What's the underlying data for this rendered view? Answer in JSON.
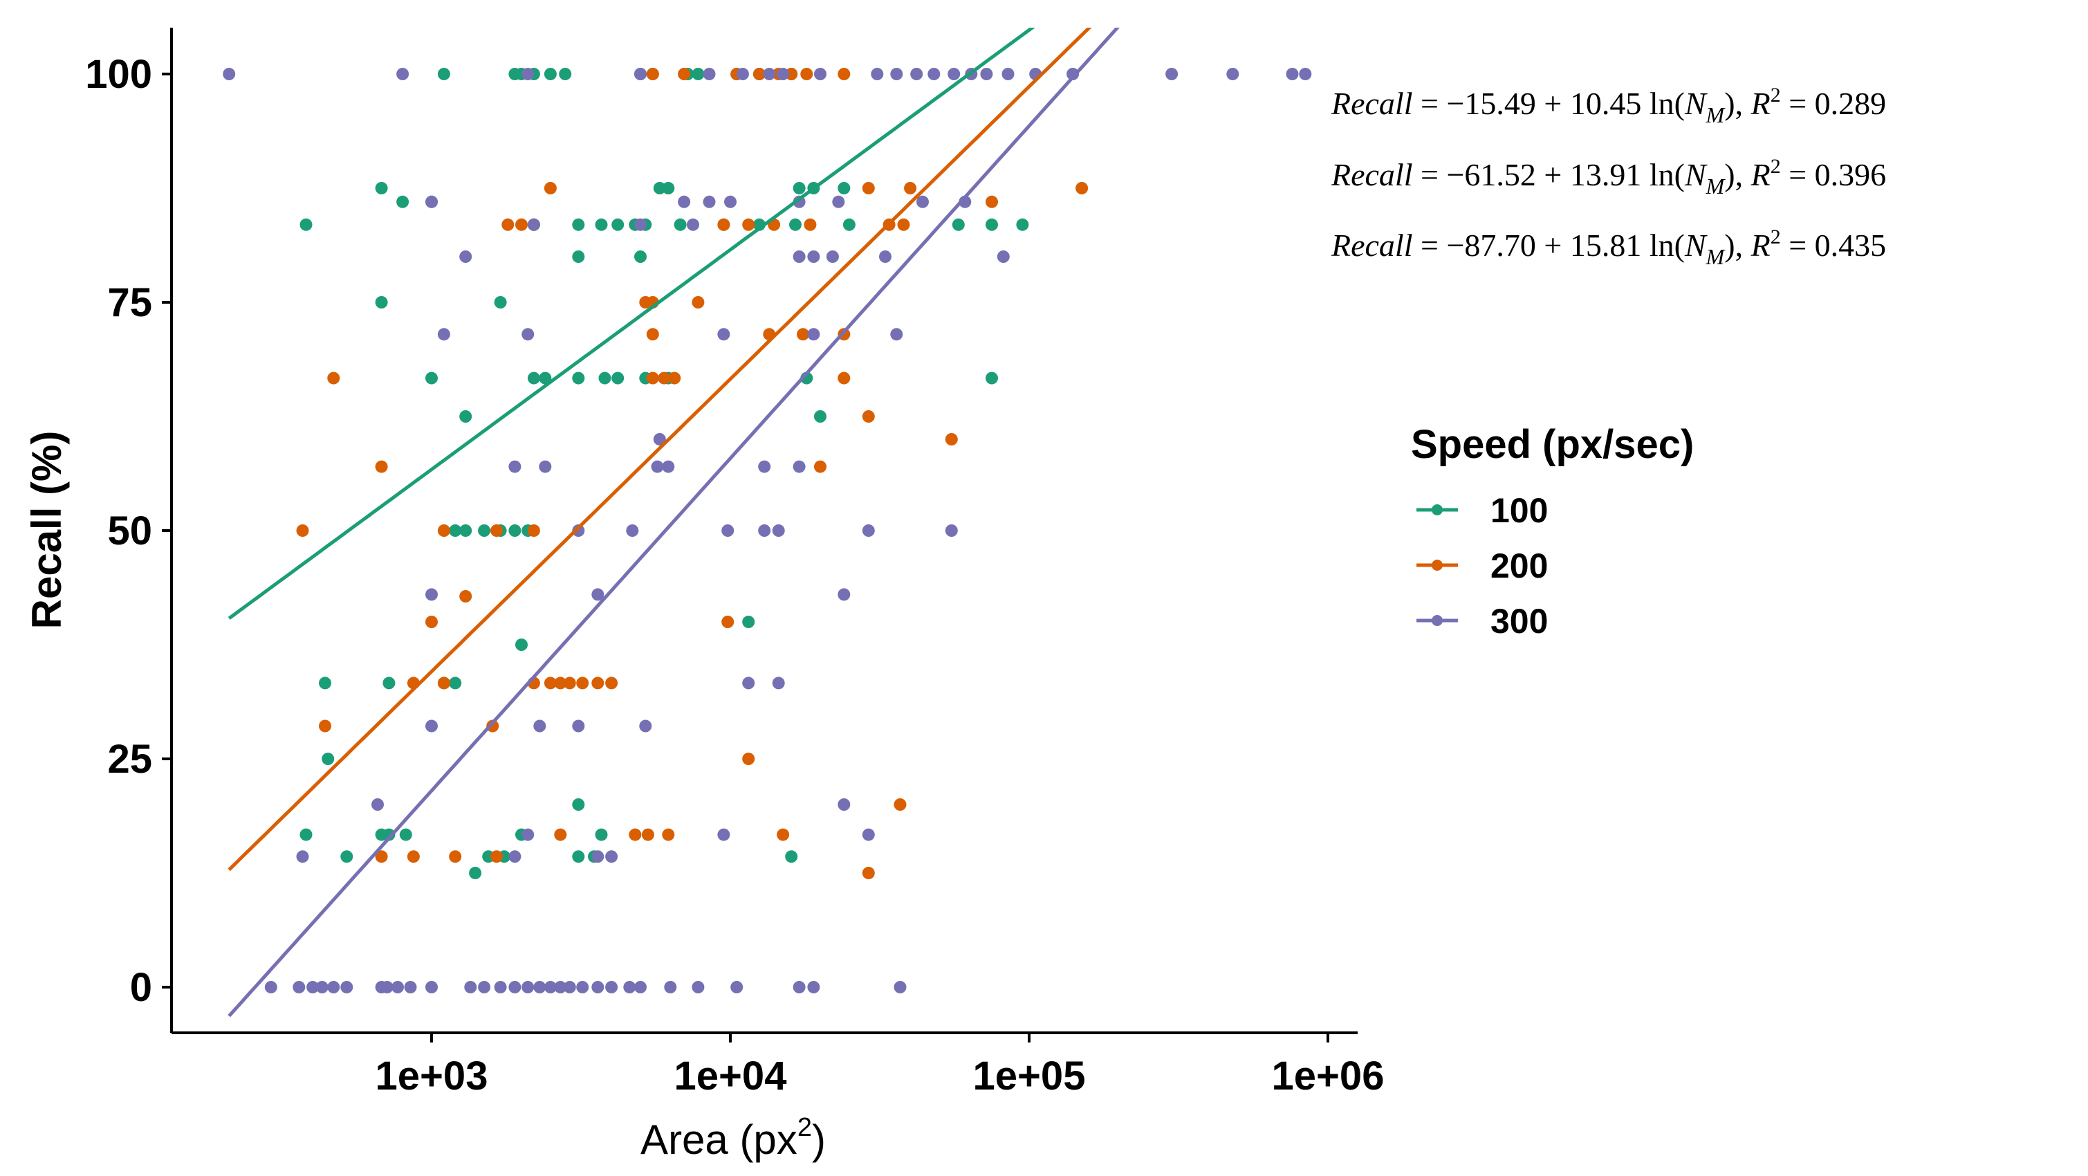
{
  "chart_data": {
    "type": "scatter",
    "title": "",
    "xlabel": "Area (px",
    "xlabel_sup": "2",
    "xlabel_close": ")",
    "ylabel": "Recall (%)",
    "xscale": "log10",
    "xlim": [
      170.0,
      1200000.0
    ],
    "ylim": [
      -5,
      104
    ],
    "x_ticks": [
      1000,
      10000,
      100000,
      1000000
    ],
    "x_tick_labels": [
      "1e+03",
      "1e+04",
      "1e+05",
      "1e+06"
    ],
    "y_ticks": [
      0,
      25,
      50,
      75,
      100
    ],
    "y_tick_labels": [
      "0",
      "25",
      "50",
      "75",
      "100"
    ],
    "legend": {
      "title": "Speed (px/sec)",
      "position": "right"
    },
    "series": [
      {
        "name": "100",
        "color": "#1b9e77",
        "fit": {
          "intercept": -15.49,
          "slope": 10.45,
          "x_range": [
            210,
            840000
          ]
        },
        "equation": {
          "label": "Recall",
          "eq": " = −15.49 + 10.45 ln(",
          "var": "N",
          "sub": "M",
          "tail": "), ",
          "r2_label": "R",
          "r2_sup": "2",
          "r2_value": " = 0.289"
        },
        "points": [
          [
            1100,
            100
          ],
          [
            1900,
            100
          ],
          [
            2000,
            100
          ],
          [
            2200,
            100
          ],
          [
            2500,
            100
          ],
          [
            2800,
            100
          ],
          [
            5000,
            100
          ],
          [
            5500,
            100
          ],
          [
            7200,
            100
          ],
          [
            7800,
            100
          ],
          [
            10500,
            100
          ],
          [
            12500,
            100
          ],
          [
            16000,
            100
          ],
          [
            680,
            87.5
          ],
          [
            800,
            86
          ],
          [
            1000,
            86
          ],
          [
            5800,
            87.5
          ],
          [
            6200,
            87.5
          ],
          [
            17000,
            87.5
          ],
          [
            19000,
            87.5
          ],
          [
            24000,
            87.5
          ],
          [
            380,
            83.5
          ],
          [
            2200,
            83.5
          ],
          [
            3100,
            83.5
          ],
          [
            3700,
            83.5
          ],
          [
            4200,
            83.5
          ],
          [
            4800,
            83.5
          ],
          [
            5200,
            83.5
          ],
          [
            6800,
            83.5
          ],
          [
            9500,
            83.5
          ],
          [
            12500,
            83.5
          ],
          [
            16500,
            83.5
          ],
          [
            25000,
            83.5
          ],
          [
            58000,
            83.5
          ],
          [
            75000,
            83.5
          ],
          [
            95000,
            83.5
          ],
          [
            3100,
            80
          ],
          [
            5000,
            80
          ],
          [
            1700,
            75
          ],
          [
            680,
            75
          ],
          [
            1000,
            66.7
          ],
          [
            2200,
            66.7
          ],
          [
            2400,
            66.7
          ],
          [
            3100,
            66.7
          ],
          [
            3800,
            66.7
          ],
          [
            4200,
            66.7
          ],
          [
            5200,
            66.7
          ],
          [
            6200,
            66.7
          ],
          [
            18000,
            66.7
          ],
          [
            75000,
            66.7
          ],
          [
            1300,
            62.5
          ],
          [
            20000,
            62.5
          ],
          [
            1200,
            50
          ],
          [
            1300,
            50
          ],
          [
            1500,
            50
          ],
          [
            1700,
            50
          ],
          [
            1900,
            50
          ],
          [
            2100,
            50
          ],
          [
            2000,
            37.5
          ],
          [
            440,
            33.3
          ],
          [
            720,
            33.3
          ],
          [
            1100,
            33.3
          ],
          [
            1200,
            33.3
          ],
          [
            450,
            25
          ],
          [
            11500,
            40
          ],
          [
            380,
            16.7
          ],
          [
            680,
            16.7
          ],
          [
            720,
            16.7
          ],
          [
            820,
            16.7
          ],
          [
            2000,
            16.7
          ],
          [
            3100,
            20
          ],
          [
            3700,
            16.7
          ],
          [
            16000,
            14.3
          ],
          [
            520,
            14.3
          ],
          [
            1400,
            12.5
          ],
          [
            1550,
            14.3
          ],
          [
            1750,
            14.3
          ],
          [
            3100,
            14.3
          ],
          [
            3500,
            14.3
          ]
        ]
      },
      {
        "name": "200",
        "color": "#d95f02",
        "fit": {
          "intercept": -61.52,
          "slope": 13.91,
          "x_range": [
            210,
            840000
          ]
        },
        "equation": {
          "label": "Recall",
          "eq": " = −61.52 + 13.91 ln(",
          "var": "N",
          "sub": "M",
          "tail": "), ",
          "r2_label": "R",
          "r2_sup": "2",
          "r2_value": " = 0.396"
        },
        "points": [
          [
            5500,
            100
          ],
          [
            7000,
            100
          ],
          [
            10500,
            100
          ],
          [
            12500,
            100
          ],
          [
            14500,
            100
          ],
          [
            16000,
            100
          ],
          [
            18000,
            100
          ],
          [
            24000,
            100
          ],
          [
            2500,
            87.5
          ],
          [
            29000,
            87.5
          ],
          [
            40000,
            87.5
          ],
          [
            75000,
            86
          ],
          [
            150000,
            87.5
          ],
          [
            1800,
            83.5
          ],
          [
            2000,
            83.5
          ],
          [
            2200,
            83.5
          ],
          [
            9500,
            83.5
          ],
          [
            11500,
            83.5
          ],
          [
            14000,
            83.5
          ],
          [
            18500,
            83.5
          ],
          [
            34000,
            83.5
          ],
          [
            38000,
            83.5
          ],
          [
            5200,
            75
          ],
          [
            5500,
            75
          ],
          [
            7800,
            75
          ],
          [
            5500,
            71.5
          ],
          [
            13500,
            71.5
          ],
          [
            17500,
            71.5
          ],
          [
            24000,
            71.5
          ],
          [
            470,
            66.7
          ],
          [
            5500,
            66.7
          ],
          [
            6000,
            66.7
          ],
          [
            6500,
            66.7
          ],
          [
            24000,
            66.7
          ],
          [
            29000,
            62.5
          ],
          [
            55000,
            60
          ],
          [
            680,
            57
          ],
          [
            20000,
            57
          ],
          [
            1100,
            50
          ],
          [
            1650,
            50
          ],
          [
            2200,
            50
          ],
          [
            370,
            50
          ],
          [
            1000,
            40
          ],
          [
            9800,
            40
          ],
          [
            1300,
            42.8
          ],
          [
            870,
            33.3
          ],
          [
            1100,
            33.3
          ],
          [
            2200,
            33.3
          ],
          [
            2500,
            33.3
          ],
          [
            2700,
            33.3
          ],
          [
            2900,
            33.3
          ],
          [
            3200,
            33.3
          ],
          [
            3600,
            33.3
          ],
          [
            4000,
            33.3
          ],
          [
            440,
            28.6
          ],
          [
            1600,
            28.6
          ],
          [
            11500,
            25
          ],
          [
            37000,
            20
          ],
          [
            680,
            14.3
          ],
          [
            870,
            14.3
          ],
          [
            1200,
            14.3
          ],
          [
            1650,
            14.3
          ],
          [
            2700,
            16.7
          ],
          [
            4800,
            16.7
          ],
          [
            5300,
            16.7
          ],
          [
            6200,
            16.7
          ],
          [
            15000,
            16.7
          ],
          [
            29000,
            12.5
          ]
        ]
      },
      {
        "name": "300",
        "color": "#7570b3",
        "fit": {
          "intercept": -87.7,
          "slope": 15.81,
          "x_range": [
            210,
            840000
          ]
        },
        "equation": {
          "label": "Recall",
          "eq": " = −87.70 + 15.81 ln(",
          "var": "N",
          "sub": "M",
          "tail": "), ",
          "r2_label": "R",
          "r2_sup": "2",
          "r2_value": " = 0.435"
        },
        "points": [
          [
            210,
            100
          ],
          [
            800,
            100
          ],
          [
            2100,
            100
          ],
          [
            5000,
            100
          ],
          [
            8500,
            100
          ],
          [
            11000,
            100
          ],
          [
            13500,
            100
          ],
          [
            15000,
            100
          ],
          [
            20000,
            100
          ],
          [
            31000,
            100
          ],
          [
            36000,
            100
          ],
          [
            42000,
            100
          ],
          [
            48000,
            100
          ],
          [
            56000,
            100
          ],
          [
            64000,
            100
          ],
          [
            72000,
            100
          ],
          [
            85000,
            100
          ],
          [
            105000,
            100
          ],
          [
            140000,
            100
          ],
          [
            300000,
            100
          ],
          [
            480000,
            100
          ],
          [
            760000,
            100
          ],
          [
            840000,
            100
          ],
          [
            7000,
            86
          ],
          [
            8500,
            86
          ],
          [
            10000,
            86
          ],
          [
            17000,
            86
          ],
          [
            23000,
            86
          ],
          [
            44000,
            86
          ],
          [
            61000,
            86
          ],
          [
            1000,
            86
          ],
          [
            1300,
            80
          ],
          [
            17000,
            80
          ],
          [
            19000,
            80
          ],
          [
            22000,
            80
          ],
          [
            33000,
            80
          ],
          [
            82000,
            80
          ],
          [
            2200,
            83.5
          ],
          [
            5000,
            83.5
          ],
          [
            7500,
            83.5
          ],
          [
            2100,
            71.5
          ],
          [
            1100,
            71.5
          ],
          [
            9500,
            71.5
          ],
          [
            19000,
            71.5
          ],
          [
            36000,
            71.5
          ],
          [
            5800,
            60
          ],
          [
            1900,
            57
          ],
          [
            2400,
            57
          ],
          [
            5700,
            57
          ],
          [
            6200,
            57
          ],
          [
            13000,
            57
          ],
          [
            17000,
            57
          ],
          [
            3100,
            50
          ],
          [
            4700,
            50
          ],
          [
            9800,
            50
          ],
          [
            13000,
            50
          ],
          [
            14500,
            50
          ],
          [
            29000,
            50
          ],
          [
            55000,
            50
          ],
          [
            1000,
            43
          ],
          [
            3600,
            43
          ],
          [
            24000,
            43
          ],
          [
            11500,
            33.3
          ],
          [
            14500,
            33.3
          ],
          [
            1000,
            28.6
          ],
          [
            2300,
            28.6
          ],
          [
            3100,
            28.6
          ],
          [
            5200,
            28.6
          ],
          [
            660,
            20
          ],
          [
            24000,
            20
          ],
          [
            370,
            14.3
          ],
          [
            1900,
            14.3
          ],
          [
            2100,
            16.7
          ],
          [
            3600,
            14.3
          ],
          [
            4000,
            14.3
          ],
          [
            9500,
            16.7
          ],
          [
            29000,
            16.7
          ],
          [
            290,
            0
          ],
          [
            360,
            0
          ],
          [
            400,
            0
          ],
          [
            430,
            0
          ],
          [
            470,
            0
          ],
          [
            520,
            0
          ],
          [
            680,
            0
          ],
          [
            710,
            0
          ],
          [
            770,
            0
          ],
          [
            850,
            0
          ],
          [
            1000,
            0
          ],
          [
            1350,
            0
          ],
          [
            1500,
            0
          ],
          [
            1700,
            0
          ],
          [
            1900,
            0
          ],
          [
            2100,
            0
          ],
          [
            2300,
            0
          ],
          [
            2500,
            0
          ],
          [
            2700,
            0
          ],
          [
            2900,
            0
          ],
          [
            3200,
            0
          ],
          [
            3600,
            0
          ],
          [
            4000,
            0
          ],
          [
            4600,
            0
          ],
          [
            5000,
            0
          ],
          [
            6300,
            0
          ],
          [
            7800,
            0
          ],
          [
            10500,
            0
          ],
          [
            17000,
            0
          ],
          [
            19000,
            0
          ],
          [
            37000,
            0
          ]
        ]
      }
    ]
  }
}
